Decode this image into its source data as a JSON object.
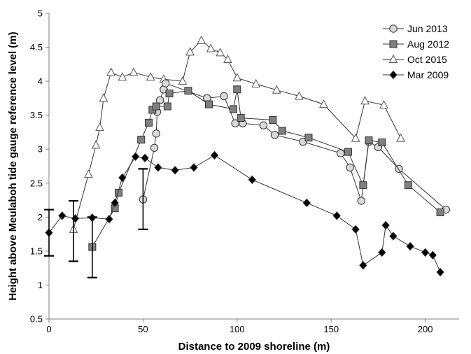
{
  "chart_data": {
    "type": "line",
    "xlabel": "Distance to 2009 shoreline (m)",
    "ylabel": "Height above Meulaboh tide gauge reference level (m)",
    "xlim": [
      0,
      218
    ],
    "ylim": [
      0.5,
      5
    ],
    "x_ticks": [
      0,
      50,
      100,
      150,
      200
    ],
    "y_ticks": [
      0.5,
      1,
      1.5,
      2,
      2.5,
      3,
      3.5,
      4,
      4.5,
      5
    ],
    "x_tick_labels": [
      "0",
      "50",
      "100",
      "150",
      "200"
    ],
    "y_tick_labels": [
      "0.5",
      "1",
      "1.5",
      "2",
      "2.5",
      "3",
      "3.5",
      "4",
      "4.5",
      "5"
    ],
    "legend_position": "top-right",
    "series": [
      {
        "name": "Jun 2013",
        "marker": "circle",
        "fill": "#d9d9d9",
        "points": [
          [
            50,
            2.26
          ],
          [
            56,
            3.02
          ],
          [
            57,
            3.23
          ],
          [
            57.5,
            3.55
          ],
          [
            59,
            3.72
          ],
          [
            61,
            3.88
          ],
          [
            62,
            3.97
          ],
          [
            84,
            3.75
          ],
          [
            93,
            3.78
          ],
          [
            99,
            3.38
          ],
          [
            103,
            3.38
          ],
          [
            114,
            3.35
          ],
          [
            120,
            3.21
          ],
          [
            135,
            3.11
          ],
          [
            155,
            2.94
          ],
          [
            160,
            2.73
          ],
          [
            166,
            2.24
          ],
          [
            170,
            3.11
          ],
          [
            175,
            3.03
          ],
          [
            186,
            2.71
          ],
          [
            211,
            2.11
          ]
        ]
      },
      {
        "name": "Aug 2012",
        "marker": "square",
        "fill": "#808080",
        "points": [
          [
            23,
            1.56
          ],
          [
            35,
            2.13
          ],
          [
            37,
            2.36
          ],
          [
            49,
            3.14
          ],
          [
            53,
            3.39
          ],
          [
            55,
            3.58
          ],
          [
            57,
            3.63
          ],
          [
            63,
            3.63
          ],
          [
            64,
            3.82
          ],
          [
            74,
            3.86
          ],
          [
            85,
            3.66
          ],
          [
            98,
            3.59
          ],
          [
            100,
            3.88
          ],
          [
            102,
            3.46
          ],
          [
            119,
            3.43
          ],
          [
            124,
            3.27
          ],
          [
            138,
            3.17
          ],
          [
            159,
            2.96
          ],
          [
            167,
            2.47
          ],
          [
            170,
            3.13
          ],
          [
            177,
            3.1
          ],
          [
            191,
            2.47
          ],
          [
            208,
            2.07
          ]
        ]
      },
      {
        "name": "Oct 2015",
        "marker": "triangle",
        "fill": "#ffffff",
        "points": [
          [
            13,
            1.82
          ],
          [
            21,
            2.63
          ],
          [
            25,
            3.06
          ],
          [
            27,
            3.32
          ],
          [
            29,
            3.75
          ],
          [
            33,
            4.13
          ],
          [
            39,
            4.06
          ],
          [
            45,
            4.13
          ],
          [
            54,
            4.06
          ],
          [
            61,
            4.03
          ],
          [
            71,
            4.0
          ],
          [
            75,
            4.43
          ],
          [
            81,
            4.6
          ],
          [
            86,
            4.48
          ],
          [
            91,
            4.42
          ],
          [
            95,
            4.32
          ],
          [
            100,
            4.05
          ],
          [
            110,
            3.96
          ],
          [
            121,
            3.87
          ],
          [
            133,
            3.78
          ],
          [
            146,
            3.66
          ],
          [
            163,
            3.16
          ],
          [
            168,
            3.71
          ],
          [
            178,
            3.65
          ],
          [
            187,
            3.16
          ]
        ]
      },
      {
        "name": "Mar 2009",
        "marker": "diamond",
        "fill": "#000000",
        "points": [
          [
            0,
            1.77
          ],
          [
            7,
            2.02
          ],
          [
            14,
            1.98
          ],
          [
            23,
            1.99
          ],
          [
            32,
            1.97
          ],
          [
            35,
            2.21
          ],
          [
            39,
            2.58
          ],
          [
            46,
            2.89
          ],
          [
            51,
            2.87
          ],
          [
            58,
            2.73
          ],
          [
            67,
            2.69
          ],
          [
            77,
            2.73
          ],
          [
            88,
            2.91
          ],
          [
            108,
            2.55
          ],
          [
            137,
            2.21
          ],
          [
            153,
            2.02
          ],
          [
            163,
            1.82
          ],
          [
            167,
            1.29
          ],
          [
            177,
            1.48
          ],
          [
            179,
            1.88
          ],
          [
            183,
            1.72
          ],
          [
            192,
            1.57
          ],
          [
            200,
            1.48
          ],
          [
            204,
            1.44
          ],
          [
            208,
            1.19
          ]
        ]
      }
    ],
    "error_bars": [
      {
        "x": 0,
        "low": 1.43,
        "high": 2.11
      },
      {
        "x": 13,
        "low": 1.35,
        "high": 2.24
      },
      {
        "x": 23,
        "low": 1.11,
        "high": 2.0
      },
      {
        "x": 50,
        "low": 1.82,
        "high": 2.71
      }
    ]
  }
}
